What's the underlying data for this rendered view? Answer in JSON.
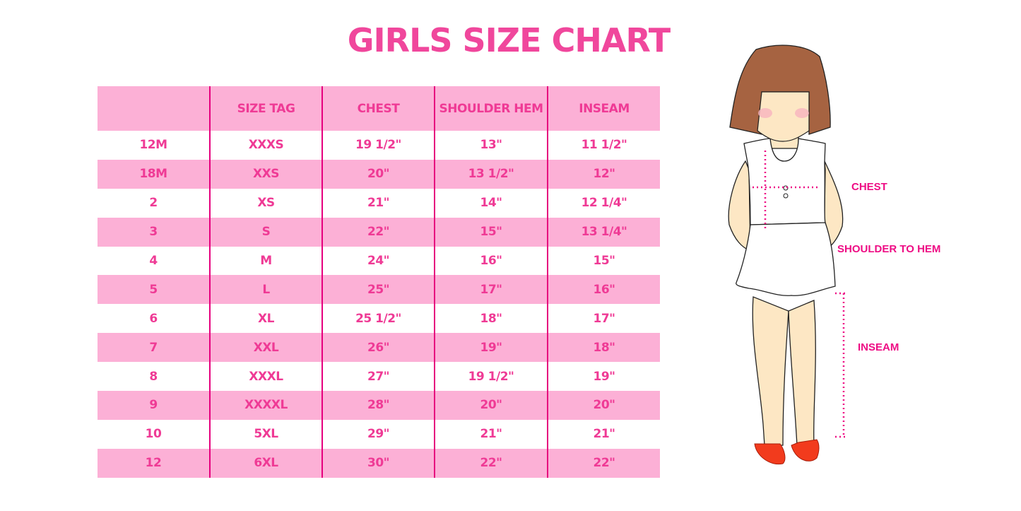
{
  "title": "GIRLS SIZE CHART",
  "table": {
    "headers": [
      "",
      "SIZE TAG",
      "CHEST",
      "SHOULDER HEM",
      "INSEAM"
    ],
    "rows": [
      [
        "12M",
        "XXXS",
        "19 1/2\"",
        "13\"",
        "11 1/2\""
      ],
      [
        "18M",
        "XXS",
        "20\"",
        "13 1/2\"",
        "12\""
      ],
      [
        "2",
        "XS",
        "21\"",
        "14\"",
        "12 1/4\""
      ],
      [
        "3",
        "S",
        "22\"",
        "15\"",
        "13 1/4\""
      ],
      [
        "4",
        "M",
        "24\"",
        "16\"",
        "15\""
      ],
      [
        "5",
        "L",
        "25\"",
        "17\"",
        "16\""
      ],
      [
        "6",
        "XL",
        "25 1/2\"",
        "18\"",
        "17\""
      ],
      [
        "7",
        "XXL",
        "26\"",
        "19\"",
        "18\""
      ],
      [
        "8",
        "XXXL",
        "27\"",
        "19 1/2\"",
        "19\""
      ],
      [
        "9",
        "XXXXL",
        "28\"",
        "20\"",
        "20\""
      ],
      [
        "10",
        "5XL",
        "29\"",
        "21\"",
        "21\""
      ],
      [
        "12",
        "6XL",
        "30\"",
        "22\"",
        "22\""
      ]
    ]
  },
  "figure": {
    "labels": {
      "chest": "CHEST",
      "shoulder_to_hem": "SHOULDER TO HEM",
      "inseam": "INSEAM"
    }
  },
  "colors": {
    "accent": "#ef3a95",
    "band": "#fcb0d6",
    "divider": "#e6007e"
  }
}
